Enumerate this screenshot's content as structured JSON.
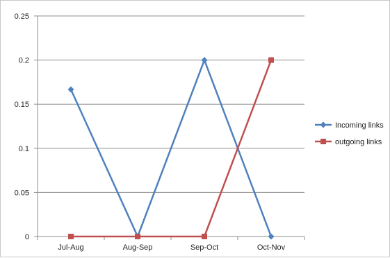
{
  "chart_data": {
    "type": "line",
    "title": "",
    "xlabel": "",
    "ylabel": "",
    "categories": [
      "Jul-Aug",
      "Aug-Sep",
      "Sep-Oct",
      "Oct-Nov"
    ],
    "ylim": [
      0,
      0.25
    ],
    "yticks": [
      "0",
      "0.05",
      "0.1",
      "0.15",
      "0.2",
      "0.25"
    ],
    "grid": true,
    "legend_position": "right",
    "series": [
      {
        "name": "Incoming links",
        "values": [
          0.1667,
          0,
          0.2,
          0
        ],
        "color": "#4f81bd",
        "marker": "diamond"
      },
      {
        "name": "outgoing links",
        "values": [
          0,
          0,
          0,
          0.2
        ],
        "color": "#c0504d",
        "marker": "square"
      }
    ]
  }
}
